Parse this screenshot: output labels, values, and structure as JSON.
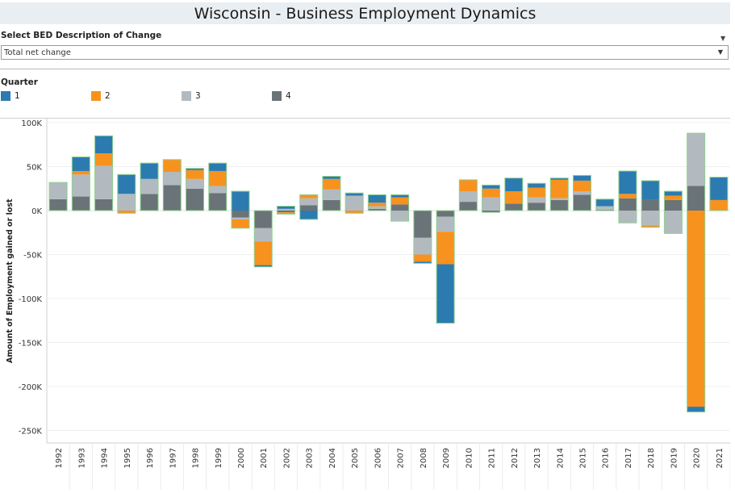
{
  "title": "Wisconsin - Business Employment Dynamics",
  "filter": {
    "label": "Select BED Description of Change",
    "selected": "Total net change"
  },
  "legend": {
    "title": "Quarter",
    "items": [
      {
        "label": "1",
        "color": "#2b7bb0"
      },
      {
        "label": "2",
        "color": "#f7921e"
      },
      {
        "label": "3",
        "color": "#b2bac0"
      },
      {
        "label": "4",
        "color": "#6a7377"
      }
    ]
  },
  "chart_data": {
    "type": "bar",
    "stacked": true,
    "ylabel": "Amount of Employment gained or lost",
    "yticks": [
      100000,
      50000,
      0,
      -50000,
      -100000,
      -150000,
      -200000,
      -250000
    ],
    "ytick_labels": [
      "100K",
      "50K",
      "0K",
      "-50K",
      "-100K",
      "-150K",
      "-200K",
      "-250K"
    ],
    "ylim": [
      -260000,
      105000
    ],
    "categories": [
      "1992",
      "1993",
      "1994",
      "1995",
      "1996",
      "1997",
      "1998",
      "1999",
      "2000",
      "2001",
      "2002",
      "2003",
      "2004",
      "2005",
      "2006",
      "2007",
      "2008",
      "2009",
      "2010",
      "2011",
      "2012",
      "2013",
      "2014",
      "2015",
      "2016",
      "2017",
      "2018",
      "2019",
      "2020",
      "2021"
    ],
    "series": [
      {
        "name": "1",
        "color": "#2b7bb0",
        "values": [
          0,
          16000,
          20000,
          22000,
          18000,
          0,
          2000,
          9000,
          22000,
          -2000,
          3000,
          -10000,
          3000,
          3000,
          9000,
          3000,
          -2000,
          -67000,
          0,
          4000,
          15000,
          5000,
          2000,
          6000,
          8000,
          26000,
          22000,
          5000,
          -6000,
          26000
        ]
      },
      {
        "name": "2",
        "color": "#f7921e",
        "values": [
          0,
          4000,
          14000,
          -3000,
          0,
          14000,
          10000,
          17000,
          -10000,
          -27000,
          -2000,
          4000,
          12000,
          -3000,
          4000,
          8000,
          -8000,
          -37000,
          13000,
          10000,
          14000,
          11000,
          21000,
          12000,
          0,
          5000,
          -2000,
          5000,
          -223000,
          12000
        ]
      },
      {
        "name": "3",
        "color": "#b2bac0",
        "values": [
          19000,
          25000,
          38000,
          19000,
          17000,
          15000,
          11000,
          8000,
          -2000,
          -15000,
          2000,
          8000,
          12000,
          17000,
          3000,
          -12000,
          -19000,
          -17000,
          12000,
          15000,
          0,
          6000,
          2000,
          4000,
          4000,
          -14000,
          -17000,
          -26000,
          60000,
          0
        ]
      },
      {
        "name": "4",
        "color": "#6a7377",
        "values": [
          13000,
          16000,
          13000,
          0,
          19000,
          29000,
          25000,
          20000,
          -8000,
          -20000,
          -2000,
          6000,
          12000,
          0,
          2000,
          7000,
          -31000,
          -7000,
          10000,
          -2000,
          8000,
          9000,
          12000,
          18000,
          1000,
          14000,
          12000,
          12000,
          28000,
          0
        ]
      }
    ]
  }
}
